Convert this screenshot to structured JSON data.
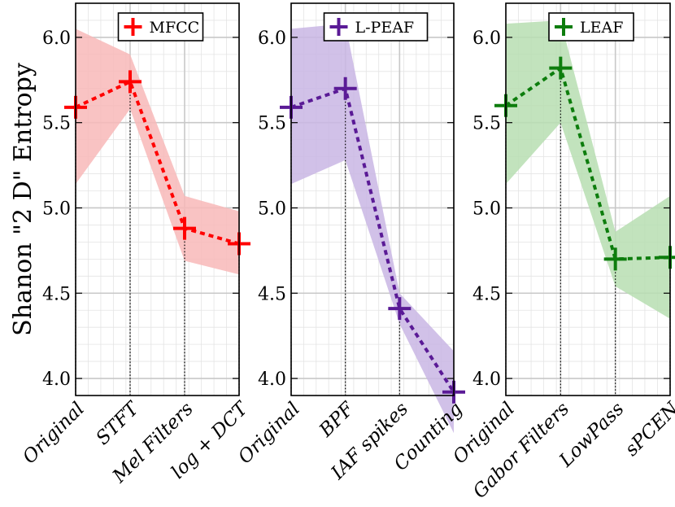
{
  "chart_data": {
    "type": "line",
    "ylabel": "Shanon \"2 D\" Entropy",
    "ylim": [
      3.9,
      6.2
    ],
    "yticks": [
      "4.0",
      "4.5",
      "5.0",
      "5.5",
      "6.0"
    ],
    "grid": true,
    "legend_position": "top-right",
    "panels": [
      {
        "name": "MFCC",
        "color": "#ff0000",
        "band_color": "#f8b8b8",
        "categories": [
          "Original",
          "STFT",
          "Mel Filters",
          "log + DCT"
        ],
        "values": [
          5.59,
          5.74,
          4.88,
          4.79
        ],
        "band_upper": [
          6.05,
          5.9,
          5.07,
          4.98
        ],
        "band_lower": [
          5.14,
          5.58,
          4.69,
          4.61
        ]
      },
      {
        "name": "L-PEAF",
        "color": "#5a1a96",
        "band_color": "#c9b6e4",
        "categories": [
          "Original",
          "BPF",
          "IAF spikes",
          "Counting"
        ],
        "values": [
          5.59,
          5.7,
          4.41,
          3.92
        ],
        "band_upper": [
          6.05,
          6.08,
          4.5,
          4.16
        ],
        "band_lower": [
          5.14,
          5.28,
          4.32,
          3.68
        ]
      },
      {
        "name": "LEAF",
        "color": "#0d7d0d",
        "band_color": "#b7deb2",
        "categories": [
          "Original",
          "Gabor Filters",
          "LowPass",
          "sPCEN"
        ],
        "values": [
          5.6,
          5.82,
          4.7,
          4.71
        ],
        "band_upper": [
          6.08,
          6.1,
          4.86,
          5.07
        ],
        "band_lower": [
          5.14,
          5.5,
          4.54,
          4.35
        ]
      }
    ]
  }
}
